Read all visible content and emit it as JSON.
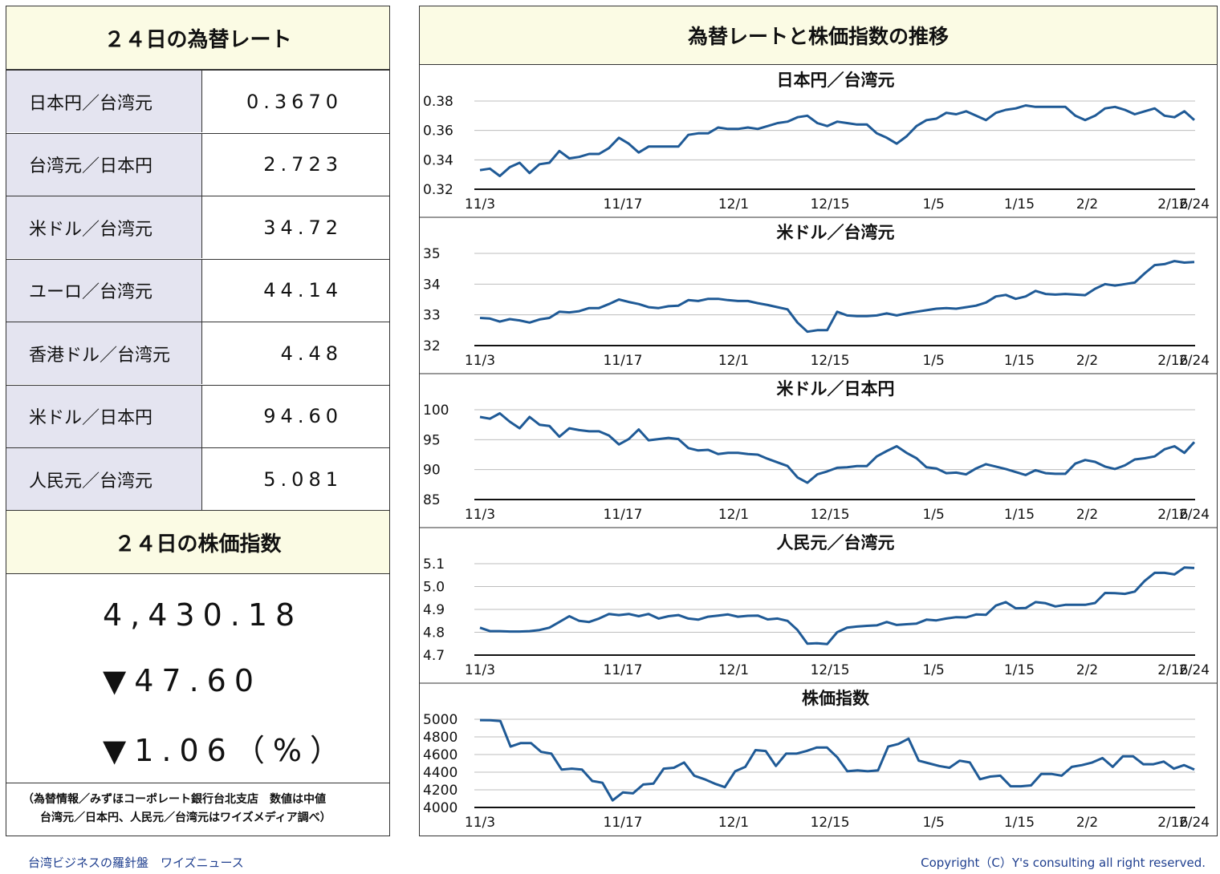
{
  "rates_panel": {
    "title": "２４日の為替レート",
    "rows": [
      {
        "label": "日本円／台湾元",
        "value": "0.3670"
      },
      {
        "label": "台湾元／日本円",
        "value": "2.723"
      },
      {
        "label": "米ドル／台湾元",
        "value": "34.72"
      },
      {
        "label": "ユーロ／台湾元",
        "value": "44.14"
      },
      {
        "label": "香港ドル／台湾元",
        "value": "4.48"
      },
      {
        "label": "米ドル／日本円",
        "value": "94.60"
      },
      {
        "label": "人民元／台湾元",
        "value": "5.081"
      }
    ]
  },
  "stock_panel": {
    "title": "２４日の株価指数",
    "value": "4,430.18",
    "change": "▼47.60",
    "change_pct": "▼1.06（%）"
  },
  "note": {
    "line1": "（為替情報／みずほコーポレート銀行台北支店　数値は中値",
    "line2": "台湾元／日本円、人民元／台湾元はワイズメディア調べ）"
  },
  "charts_panel": {
    "title": "為替レートと株価指数の推移"
  },
  "footer": {
    "left": "台湾ビジネスの羅針盤　ワイズニュース",
    "right": "Copyright（C）Y's consulting all right reserved."
  },
  "colors": {
    "line": "#1f5a96",
    "header_bg": "#fbfbe4",
    "label_bg": "#e4e4f0"
  },
  "chart_data": [
    {
      "type": "line",
      "title": "日本円／台湾元",
      "x_ticks": [
        "11/3",
        "11/17",
        "12/1",
        "12/15",
        "1/5",
        "1/15",
        "2/2",
        "2/16",
        "2/24"
      ],
      "ylim": [
        0.32,
        0.38
      ],
      "y_ticks": [
        "0.38",
        "0.36",
        "0.34",
        "0.32"
      ],
      "values": [
        0.333,
        0.334,
        0.329,
        0.335,
        0.338,
        0.331,
        0.337,
        0.338,
        0.346,
        0.341,
        0.342,
        0.344,
        0.344,
        0.348,
        0.355,
        0.351,
        0.345,
        0.349,
        0.349,
        0.349,
        0.349,
        0.357,
        0.358,
        0.358,
        0.362,
        0.361,
        0.361,
        0.362,
        0.361,
        0.363,
        0.365,
        0.366,
        0.369,
        0.37,
        0.365,
        0.363,
        0.366,
        0.365,
        0.364,
        0.364,
        0.358,
        0.355,
        0.351,
        0.356,
        0.363,
        0.367,
        0.368,
        0.372,
        0.371,
        0.373,
        0.37,
        0.367,
        0.372,
        0.374,
        0.375,
        0.377,
        0.376,
        0.376,
        0.376,
        0.376,
        0.37,
        0.367,
        0.37,
        0.375,
        0.376,
        0.374,
        0.371,
        0.373,
        0.375,
        0.37,
        0.369,
        0.373,
        0.367
      ]
    },
    {
      "type": "line",
      "title": "米ドル／台湾元",
      "x_ticks": [
        "11/3",
        "11/17",
        "12/1",
        "12/15",
        "1/5",
        "1/15",
        "2/2",
        "2/16",
        "2/24"
      ],
      "ylim": [
        32,
        35
      ],
      "y_ticks": [
        "35",
        "34",
        "33",
        "32"
      ],
      "values": [
        32.9,
        32.88,
        32.78,
        32.86,
        32.82,
        32.75,
        32.85,
        32.9,
        33.1,
        33.08,
        33.12,
        33.22,
        33.22,
        33.35,
        33.5,
        33.42,
        33.35,
        33.25,
        33.22,
        33.28,
        33.3,
        33.48,
        33.45,
        33.52,
        33.52,
        33.48,
        33.45,
        33.45,
        33.38,
        33.32,
        33.25,
        33.18,
        32.75,
        32.45,
        32.5,
        32.5,
        33.1,
        32.98,
        32.96,
        32.96,
        32.98,
        33.05,
        32.98,
        33.05,
        33.1,
        33.15,
        33.2,
        33.22,
        33.2,
        33.25,
        33.3,
        33.4,
        33.6,
        33.65,
        33.52,
        33.6,
        33.78,
        33.68,
        33.66,
        33.68,
        33.66,
        33.64,
        33.85,
        34.0,
        33.95,
        34.0,
        34.05,
        34.35,
        34.62,
        34.65,
        34.75,
        34.7,
        34.72
      ]
    },
    {
      "type": "line",
      "title": "米ドル／日本円",
      "x_ticks": [
        "11/3",
        "11/17",
        "12/1",
        "12/15",
        "1/5",
        "1/15",
        "2/2",
        "2/16",
        "2/24"
      ],
      "ylim": [
        85,
        100
      ],
      "y_ticks": [
        "100",
        "95",
        "90",
        "85"
      ],
      "values": [
        98.8,
        98.5,
        99.4,
        98.0,
        96.9,
        98.8,
        97.5,
        97.3,
        95.5,
        96.9,
        96.6,
        96.4,
        96.4,
        95.7,
        94.2,
        95.1,
        96.7,
        94.9,
        95.1,
        95.3,
        95.1,
        93.6,
        93.2,
        93.3,
        92.6,
        92.8,
        92.8,
        92.6,
        92.5,
        91.8,
        91.2,
        90.6,
        88.7,
        87.8,
        89.2,
        89.7,
        90.3,
        90.4,
        90.6,
        90.6,
        92.2,
        93.1,
        93.9,
        92.8,
        91.9,
        90.4,
        90.2,
        89.4,
        89.5,
        89.2,
        90.2,
        90.9,
        90.5,
        90.1,
        89.6,
        89.1,
        89.9,
        89.4,
        89.3,
        89.3,
        91.0,
        91.6,
        91.3,
        90.5,
        90.1,
        90.7,
        91.7,
        91.9,
        92.2,
        93.4,
        93.9,
        92.8,
        94.6
      ]
    },
    {
      "type": "line",
      "title": "人民元／台湾元",
      "x_ticks": [
        "11/3",
        "11/17",
        "12/1",
        "12/15",
        "1/5",
        "1/15",
        "2/2",
        "2/16",
        "2/24"
      ],
      "ylim": [
        4.7,
        5.1
      ],
      "y_ticks": [
        "5.1",
        "5.0",
        "4.9",
        "4.8",
        "4.7"
      ],
      "values": [
        4.82,
        4.805,
        4.805,
        4.803,
        4.803,
        4.805,
        4.81,
        4.82,
        4.845,
        4.87,
        4.85,
        4.845,
        4.86,
        4.88,
        4.875,
        4.88,
        4.87,
        4.88,
        4.86,
        4.87,
        4.875,
        4.86,
        4.855,
        4.868,
        4.873,
        4.878,
        4.868,
        4.872,
        4.873,
        4.856,
        4.86,
        4.85,
        4.81,
        4.75,
        4.752,
        4.748,
        4.8,
        4.82,
        4.825,
        4.828,
        4.83,
        4.845,
        4.832,
        4.835,
        4.838,
        4.855,
        4.852,
        4.86,
        4.866,
        4.865,
        4.878,
        4.876,
        4.917,
        4.932,
        4.905,
        4.906,
        4.932,
        4.927,
        4.913,
        4.92,
        4.92,
        4.92,
        4.928,
        4.972,
        4.971,
        4.968,
        4.978,
        5.025,
        5.06,
        5.06,
        5.053,
        5.083,
        5.081
      ]
    },
    {
      "type": "line",
      "title": "株価指数",
      "x_ticks": [
        "11/3",
        "11/17",
        "12/1",
        "12/15",
        "1/5",
        "1/15",
        "2/2",
        "2/16",
        "2/24"
      ],
      "ylim": [
        4000,
        5000
      ],
      "y_ticks": [
        "5000",
        "4800",
        "4600",
        "4400",
        "4200",
        "4000"
      ],
      "values": [
        4990,
        4988,
        4980,
        4690,
        4730,
        4730,
        4630,
        4610,
        4430,
        4440,
        4430,
        4300,
        4280,
        4080,
        4170,
        4160,
        4260,
        4270,
        4440,
        4450,
        4510,
        4360,
        4320,
        4270,
        4230,
        4410,
        4460,
        4650,
        4640,
        4470,
        4610,
        4610,
        4640,
        4680,
        4680,
        4570,
        4410,
        4420,
        4410,
        4420,
        4690,
        4720,
        4780,
        4530,
        4500,
        4470,
        4450,
        4530,
        4510,
        4320,
        4350,
        4360,
        4240,
        4240,
        4250,
        4380,
        4380,
        4360,
        4460,
        4480,
        4510,
        4560,
        4460,
        4580,
        4580,
        4490,
        4490,
        4520,
        4440,
        4480,
        4430
      ]
    }
  ]
}
